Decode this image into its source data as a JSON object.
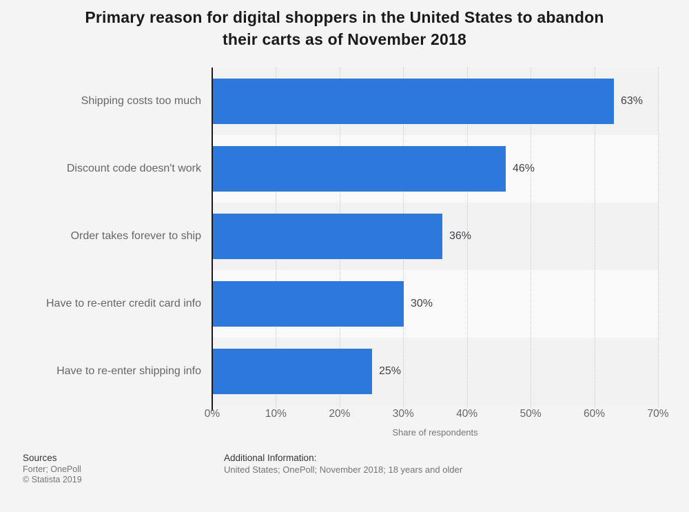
{
  "title": {
    "line1": "Primary reason for digital shoppers in the United States to abandon",
    "line2": "their carts as of November 2018"
  },
  "chart_data": {
    "type": "bar",
    "orientation": "horizontal",
    "title": "Primary reason for digital shoppers in the United States to abandon their carts as of November 2018",
    "categories": [
      "Shipping costs too much",
      "Discount code doesn't work",
      "Order takes forever to ship",
      "Have to re-enter credit card info",
      "Have to re-enter shipping info"
    ],
    "values": [
      63,
      46,
      36,
      30,
      25
    ],
    "value_labels": [
      "63%",
      "46%",
      "36%",
      "30%",
      "25%"
    ],
    "xlabel": "Share of respondents",
    "ylabel": "",
    "xlim": [
      0,
      70
    ],
    "x_ticks": [
      0,
      10,
      20,
      30,
      40,
      50,
      60,
      70
    ],
    "x_tick_labels": [
      "0%",
      "10%",
      "20%",
      "30%",
      "40%",
      "50%",
      "60%",
      "70%"
    ],
    "grid": "vertical-dotted",
    "legend": null
  },
  "colors": {
    "background": "#f4f4f4",
    "bar": "#2d78dc",
    "band_odd": "#f2f2f2",
    "band_even": "#fafafa",
    "axis": "#1a1a1a",
    "gridline": "#c9c9c9",
    "category_label": "#666666",
    "value_label": "#404046",
    "tick_label": "#666666",
    "title_color": "#1a1a1d"
  },
  "footer": {
    "sources_heading": "Sources",
    "sources_line": "Forter; OnePoll",
    "copyright": "© Statista 2019",
    "additional_heading": "Additional Information:",
    "additional_text": "United States; OnePoll; November 2018; 18 years and older"
  }
}
